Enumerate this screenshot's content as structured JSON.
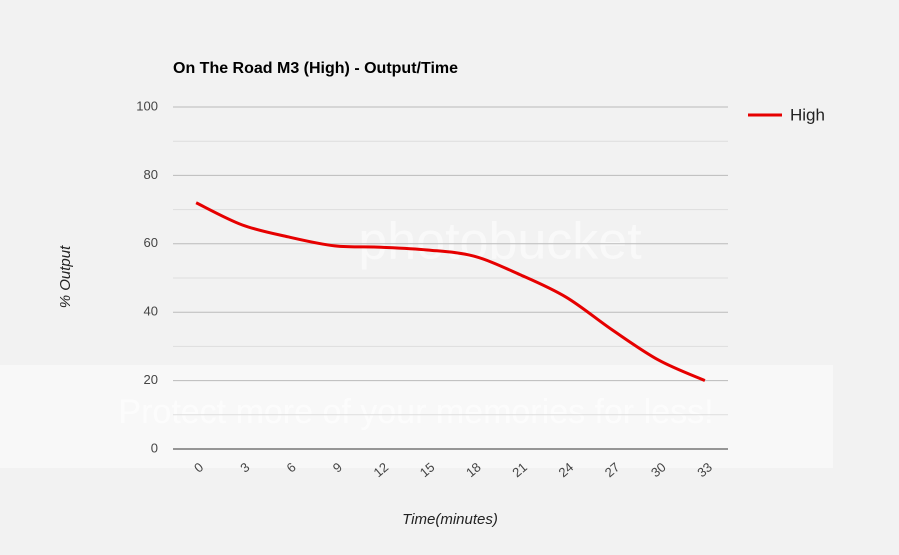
{
  "chart_data": {
    "type": "line",
    "title": "On The Road M3 (High) - Output/Time",
    "x_label": "Time(minutes)",
    "y_label": "% Output",
    "categories": [
      "0",
      "3",
      "6",
      "9",
      "12",
      "15",
      "18",
      "21",
      "24",
      "27",
      "30",
      "33"
    ],
    "series": [
      {
        "name": "High",
        "color": "#e60000",
        "values": [
          72,
          65.5,
          62,
          59.4,
          59,
          58.2,
          56.4,
          51,
          44.4,
          34.8,
          26,
          20
        ]
      }
    ],
    "ylim": [
      0,
      100
    ],
    "yticks": [
      0,
      20,
      40,
      60,
      80,
      100
    ],
    "minor_yticks": [
      10,
      30,
      50,
      70,
      90
    ],
    "grid": true,
    "legend": "right",
    "watermark": {
      "brand": "photobucket",
      "slogan": "Protect more of your memories for less!"
    }
  }
}
